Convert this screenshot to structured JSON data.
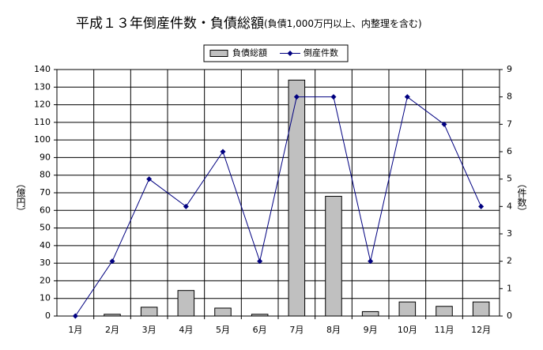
{
  "chart_data": {
    "type": "bar_line",
    "title": "平成１３年倒産件数・負債総額",
    "subtitle": "(負債1,000万円以上、内整理を含む)",
    "categories": [
      "1月",
      "2月",
      "3月",
      "4月",
      "5月",
      "6月",
      "7月",
      "8月",
      "9月",
      "10月",
      "11月",
      "12月"
    ],
    "series": [
      {
        "name": "負債総額",
        "type": "bar",
        "color": "#c0c0c0",
        "values": [
          0,
          1,
          5,
          14.5,
          4.5,
          1,
          134,
          68,
          2.5,
          8,
          5.5,
          8
        ]
      },
      {
        "name": "倒産件数",
        "type": "line",
        "axis": "y2",
        "color": "#000080",
        "values": [
          0,
          2,
          5,
          4,
          6,
          2,
          8,
          8,
          2,
          8,
          7,
          4
        ]
      }
    ],
    "ylabel": "（億円）",
    "y2label": "（件数）",
    "ylim": [
      0,
      140
    ],
    "yticks": [
      0,
      10,
      20,
      30,
      40,
      50,
      60,
      70,
      80,
      90,
      100,
      110,
      120,
      130,
      140
    ],
    "y2lim": [
      0,
      9
    ],
    "y2ticks": [
      0,
      1,
      2,
      3,
      4,
      5,
      6,
      7,
      8,
      9
    ],
    "grid": true,
    "legend": "top"
  }
}
